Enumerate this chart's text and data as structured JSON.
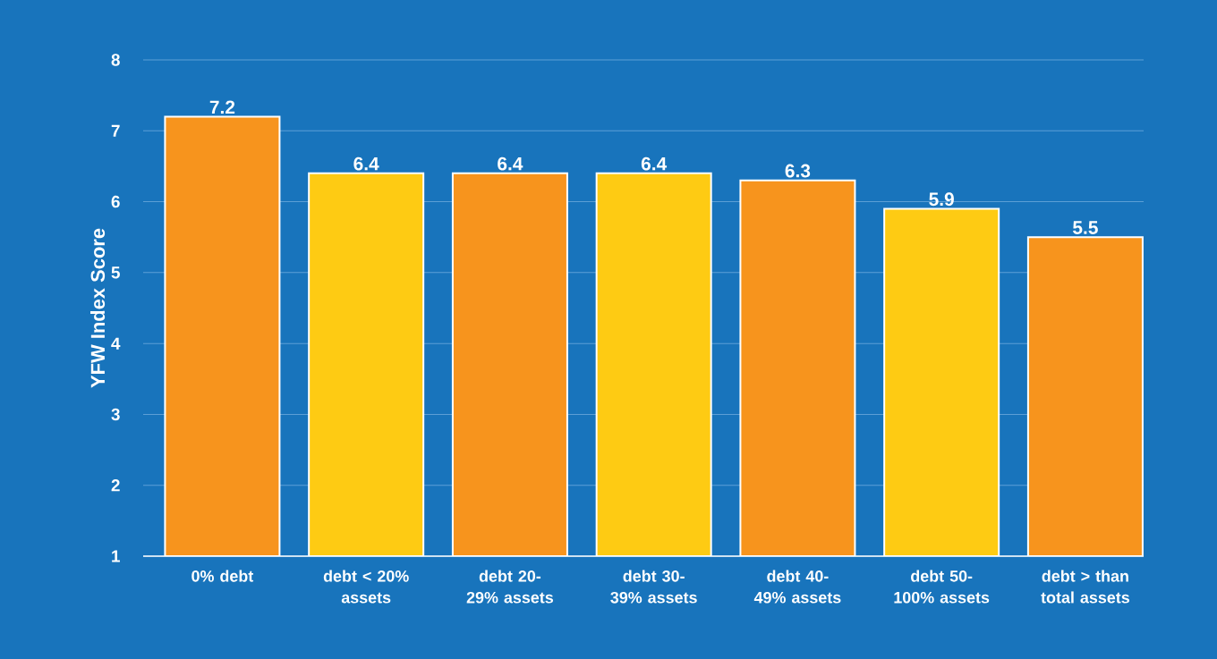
{
  "chart_data": {
    "type": "bar",
    "ylabel": "YFW Index Score",
    "categories": [
      "0% debt",
      "debt < 20% assets",
      "debt 20-29% assets",
      "debt 30-39% assets",
      "debt 40-49% assets",
      "debt 50-100% assets",
      "debt > than total assets"
    ],
    "values": [
      7.2,
      6.4,
      6.4,
      6.4,
      6.3,
      5.9,
      5.5
    ],
    "colors": [
      "#f7941d",
      "#fecb13",
      "#f7941d",
      "#fecb13",
      "#f7941d",
      "#fecb13",
      "#f7941d"
    ],
    "ylim": [
      1,
      8
    ],
    "yticks": [
      1,
      2,
      3,
      4,
      5,
      6,
      7,
      8
    ],
    "grid": "y",
    "data_labels": true
  }
}
